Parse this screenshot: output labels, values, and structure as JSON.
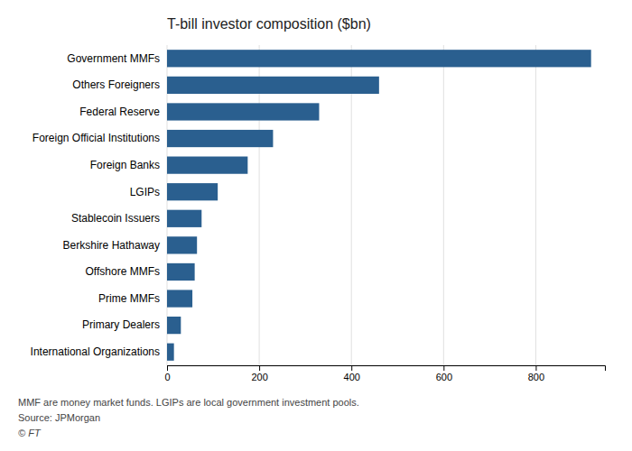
{
  "chart_data": {
    "type": "bar",
    "orientation": "horizontal",
    "title": "T-bill investor composition ($bn)",
    "categories": [
      "International Organizations",
      "Primary Dealers",
      "Prime MMFs",
      "Offshore MMFs",
      "Berkshire Hathaway",
      "Stablecoin Issuers",
      "LGIPs",
      "Foreign Banks",
      "Foreign Official Institutions",
      "Federal Reserve",
      "Others Foreigners",
      "Government MMFs"
    ],
    "values": [
      15,
      30,
      55,
      60,
      65,
      75,
      110,
      175,
      230,
      330,
      460,
      920
    ],
    "color": "#2a5f8f",
    "xlim": [
      0,
      950
    ],
    "xticks": [
      0,
      200,
      400,
      600,
      800
    ],
    "grid": true,
    "annotations": [
      "MMF are money market funds. LGIPs are local government investment pools.",
      "Source: JPMorgan",
      "© FT"
    ]
  }
}
